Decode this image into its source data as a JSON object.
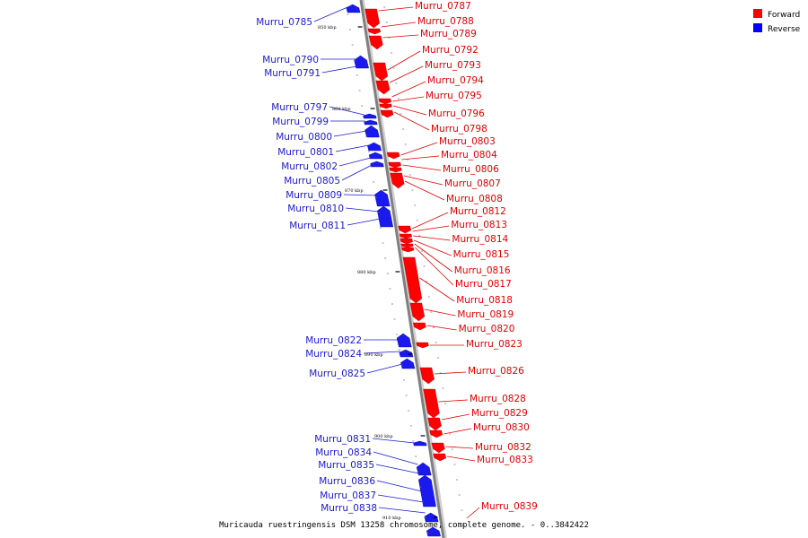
{
  "colors": {
    "forward": "#ff0000",
    "reverse": "#1a1aee",
    "forward_line": "#e00000",
    "reverse_line": "#1a1acc",
    "backbone": "#808080"
  },
  "legend": [
    {
      "label": "Forward",
      "color": "#ff0000"
    },
    {
      "label": "Reverse",
      "color": "#0000ff"
    }
  ],
  "caption": "Muricauda ruestringensis DSM 13258 chromosome, complete genome. - 0..3842422",
  "ticks": [
    "850 kbp",
    "860 kbp",
    "870 kbp",
    "880 kbp",
    "890 kbp",
    "900 kbp",
    "910 kbp"
  ],
  "forward_genes": [
    "Murru_0787",
    "Murru_0788",
    "Murru_0789",
    "Murru_0792",
    "Murru_0793",
    "Murru_0794",
    "Murru_0795",
    "Murru_0796",
    "Murru_0798",
    "Murru_0803",
    "Murru_0804",
    "Murru_0806",
    "Murru_0807",
    "Murru_0808",
    "Murru_0812",
    "Murru_0813",
    "Murru_0814",
    "Murru_0815",
    "Murru_0816",
    "Murru_0817",
    "Murru_0818",
    "Murru_0819",
    "Murru_0820",
    "Murru_0823",
    "Murru_0826",
    "Murru_0828",
    "Murru_0829",
    "Murru_0830",
    "Murru_0832",
    "Murru_0833",
    "Murru_0839"
  ],
  "reverse_genes": [
    "Murru_0785",
    "Murru_0790",
    "Murru_0791",
    "Murru_0797",
    "Murru_0799",
    "Murru_0800",
    "Murru_0801",
    "Murru_0802",
    "Murru_0805",
    "Murru_0809",
    "Murru_0810",
    "Murru_0811",
    "Murru_0822",
    "Murru_0824",
    "Murru_0825",
    "Murru_0831",
    "Murru_0834",
    "Murru_0835",
    "Murru_0836",
    "Murru_0837",
    "Murru_0838"
  ]
}
